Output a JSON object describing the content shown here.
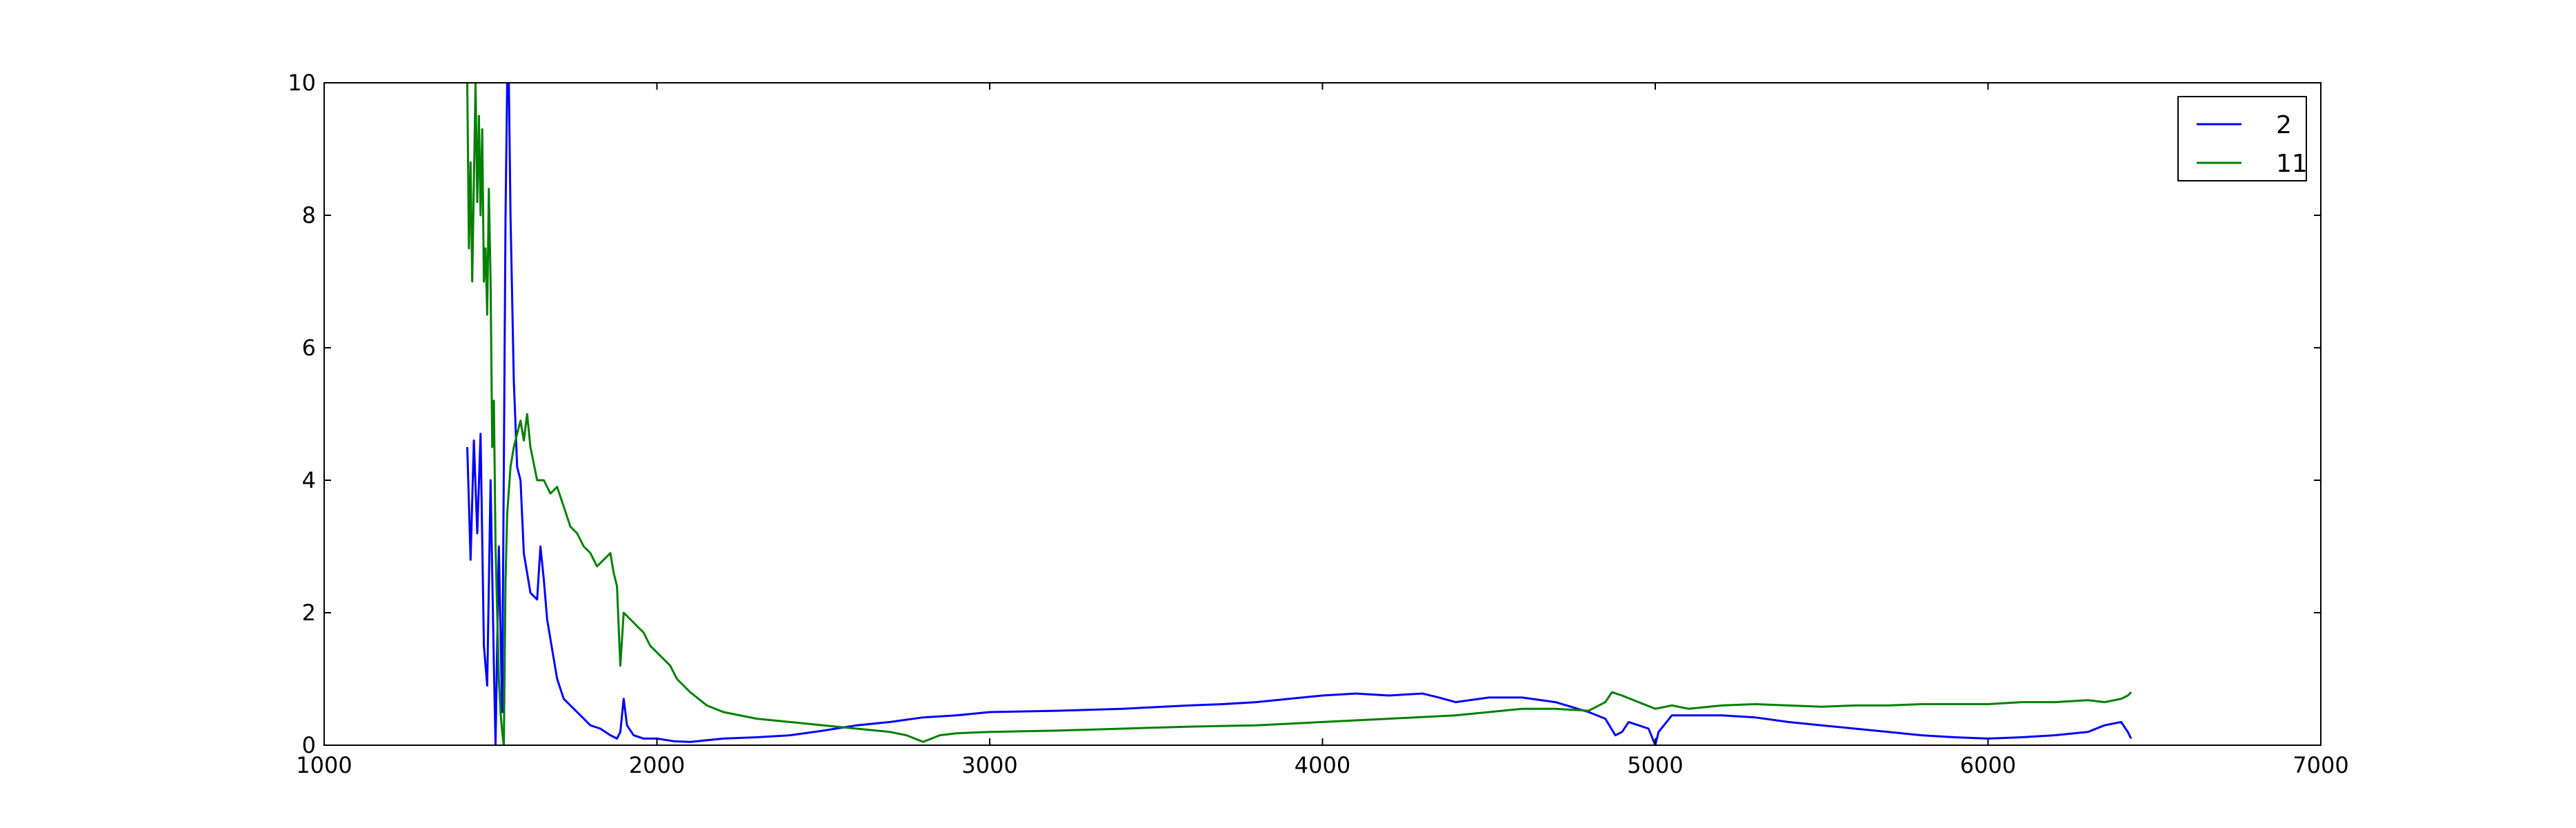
{
  "chart_data": {
    "type": "line",
    "title": "",
    "xlabel": "",
    "ylabel": "",
    "xlim": [
      1000,
      7000
    ],
    "ylim": [
      0,
      10
    ],
    "xticks": [
      "1000",
      "2000",
      "3000",
      "4000",
      "5000",
      "6000",
      "7000"
    ],
    "yticks": [
      "0",
      "2",
      "4",
      "6",
      "8",
      "10"
    ],
    "grid": false,
    "legend_position": "top-right",
    "series": [
      {
        "name": "2",
        "color": "#0000ff",
        "points": [
          [
            1430,
            4.5
          ],
          [
            1440,
            2.8
          ],
          [
            1450,
            4.6
          ],
          [
            1460,
            3.2
          ],
          [
            1470,
            4.7
          ],
          [
            1480,
            1.5
          ],
          [
            1490,
            0.9
          ],
          [
            1500,
            4.0
          ],
          [
            1510,
            1.2
          ],
          [
            1515,
            0.0
          ],
          [
            1525,
            3.0
          ],
          [
            1535,
            0.5
          ],
          [
            1545,
            8.0
          ],
          [
            1550,
            10.0
          ],
          [
            1555,
            10.0
          ],
          [
            1560,
            8.0
          ],
          [
            1570,
            5.5
          ],
          [
            1580,
            4.2
          ],
          [
            1590,
            4.0
          ],
          [
            1600,
            2.9
          ],
          [
            1610,
            2.6
          ],
          [
            1620,
            2.3
          ],
          [
            1640,
            2.2
          ],
          [
            1650,
            3.0
          ],
          [
            1660,
            2.5
          ],
          [
            1670,
            1.9
          ],
          [
            1680,
            1.6
          ],
          [
            1700,
            1.0
          ],
          [
            1720,
            0.7
          ],
          [
            1750,
            0.55
          ],
          [
            1780,
            0.4
          ],
          [
            1800,
            0.3
          ],
          [
            1830,
            0.25
          ],
          [
            1860,
            0.15
          ],
          [
            1880,
            0.1
          ],
          [
            1890,
            0.2
          ],
          [
            1900,
            0.7
          ],
          [
            1910,
            0.3
          ],
          [
            1930,
            0.15
          ],
          [
            1960,
            0.1
          ],
          [
            2000,
            0.1
          ],
          [
            2050,
            0.06
          ],
          [
            2100,
            0.05
          ],
          [
            2200,
            0.1
          ],
          [
            2300,
            0.12
          ],
          [
            2400,
            0.15
          ],
          [
            2500,
            0.22
          ],
          [
            2600,
            0.3
          ],
          [
            2700,
            0.35
          ],
          [
            2800,
            0.42
          ],
          [
            2900,
            0.45
          ],
          [
            3000,
            0.5
          ],
          [
            3200,
            0.52
          ],
          [
            3400,
            0.55
          ],
          [
            3600,
            0.6
          ],
          [
            3700,
            0.62
          ],
          [
            3800,
            0.65
          ],
          [
            3900,
            0.7
          ],
          [
            4000,
            0.75
          ],
          [
            4100,
            0.78
          ],
          [
            4200,
            0.75
          ],
          [
            4300,
            0.78
          ],
          [
            4350,
            0.72
          ],
          [
            4400,
            0.65
          ],
          [
            4500,
            0.72
          ],
          [
            4600,
            0.72
          ],
          [
            4700,
            0.65
          ],
          [
            4800,
            0.5
          ],
          [
            4850,
            0.4
          ],
          [
            4880,
            0.15
          ],
          [
            4900,
            0.2
          ],
          [
            4920,
            0.35
          ],
          [
            4950,
            0.3
          ],
          [
            4980,
            0.25
          ],
          [
            5000,
            0.0
          ],
          [
            5010,
            0.2
          ],
          [
            5050,
            0.45
          ],
          [
            5100,
            0.45
          ],
          [
            5200,
            0.45
          ],
          [
            5300,
            0.42
          ],
          [
            5400,
            0.35
          ],
          [
            5500,
            0.3
          ],
          [
            5600,
            0.25
          ],
          [
            5700,
            0.2
          ],
          [
            5800,
            0.15
          ],
          [
            5900,
            0.12
          ],
          [
            6000,
            0.1
          ],
          [
            6100,
            0.12
          ],
          [
            6200,
            0.15
          ],
          [
            6300,
            0.2
          ],
          [
            6350,
            0.3
          ],
          [
            6400,
            0.35
          ],
          [
            6420,
            0.2
          ],
          [
            6430,
            0.1
          ]
        ]
      },
      {
        "name": "11",
        "color": "#008000",
        "points": [
          [
            1430,
            10.0
          ],
          [
            1435,
            7.5
          ],
          [
            1440,
            8.8
          ],
          [
            1445,
            7.0
          ],
          [
            1450,
            8.5
          ],
          [
            1455,
            10.0
          ],
          [
            1460,
            8.2
          ],
          [
            1465,
            9.5
          ],
          [
            1470,
            8.0
          ],
          [
            1475,
            9.3
          ],
          [
            1480,
            7.0
          ],
          [
            1485,
            7.5
          ],
          [
            1490,
            6.5
          ],
          [
            1495,
            8.4
          ],
          [
            1500,
            7.0
          ],
          [
            1505,
            4.5
          ],
          [
            1510,
            5.2
          ],
          [
            1515,
            3.0
          ],
          [
            1520,
            2.0
          ],
          [
            1525,
            1.0
          ],
          [
            1530,
            0.5
          ],
          [
            1535,
            0.2
          ],
          [
            1540,
            0.0
          ],
          [
            1545,
            2.5
          ],
          [
            1550,
            3.5
          ],
          [
            1560,
            4.2
          ],
          [
            1570,
            4.5
          ],
          [
            1580,
            4.7
          ],
          [
            1590,
            4.9
          ],
          [
            1600,
            4.6
          ],
          [
            1610,
            5.0
          ],
          [
            1620,
            4.5
          ],
          [
            1640,
            4.0
          ],
          [
            1660,
            4.0
          ],
          [
            1680,
            3.8
          ],
          [
            1700,
            3.9
          ],
          [
            1720,
            3.6
          ],
          [
            1740,
            3.3
          ],
          [
            1760,
            3.2
          ],
          [
            1780,
            3.0
          ],
          [
            1800,
            2.9
          ],
          [
            1820,
            2.7
          ],
          [
            1840,
            2.8
          ],
          [
            1860,
            2.9
          ],
          [
            1870,
            2.6
          ],
          [
            1880,
            2.4
          ],
          [
            1890,
            1.2
          ],
          [
            1900,
            2.0
          ],
          [
            1920,
            1.9
          ],
          [
            1940,
            1.8
          ],
          [
            1960,
            1.7
          ],
          [
            1980,
            1.5
          ],
          [
            2000,
            1.4
          ],
          [
            2020,
            1.3
          ],
          [
            2040,
            1.2
          ],
          [
            2060,
            1.0
          ],
          [
            2080,
            0.9
          ],
          [
            2100,
            0.8
          ],
          [
            2150,
            0.6
          ],
          [
            2200,
            0.5
          ],
          [
            2300,
            0.4
          ],
          [
            2400,
            0.35
          ],
          [
            2500,
            0.3
          ],
          [
            2600,
            0.25
          ],
          [
            2700,
            0.2
          ],
          [
            2750,
            0.15
          ],
          [
            2800,
            0.05
          ],
          [
            2850,
            0.15
          ],
          [
            2900,
            0.18
          ],
          [
            3000,
            0.2
          ],
          [
            3200,
            0.22
          ],
          [
            3400,
            0.25
          ],
          [
            3600,
            0.28
          ],
          [
            3800,
            0.3
          ],
          [
            4000,
            0.35
          ],
          [
            4200,
            0.4
          ],
          [
            4400,
            0.45
          ],
          [
            4600,
            0.55
          ],
          [
            4700,
            0.55
          ],
          [
            4800,
            0.52
          ],
          [
            4850,
            0.65
          ],
          [
            4870,
            0.8
          ],
          [
            4900,
            0.75
          ],
          [
            4950,
            0.65
          ],
          [
            5000,
            0.55
          ],
          [
            5050,
            0.6
          ],
          [
            5100,
            0.55
          ],
          [
            5200,
            0.6
          ],
          [
            5300,
            0.62
          ],
          [
            5400,
            0.6
          ],
          [
            5500,
            0.58
          ],
          [
            5600,
            0.6
          ],
          [
            5700,
            0.6
          ],
          [
            5800,
            0.62
          ],
          [
            5900,
            0.62
          ],
          [
            6000,
            0.62
          ],
          [
            6100,
            0.65
          ],
          [
            6200,
            0.65
          ],
          [
            6300,
            0.68
          ],
          [
            6350,
            0.65
          ],
          [
            6400,
            0.7
          ],
          [
            6420,
            0.75
          ],
          [
            6430,
            0.8
          ]
        ]
      }
    ]
  }
}
